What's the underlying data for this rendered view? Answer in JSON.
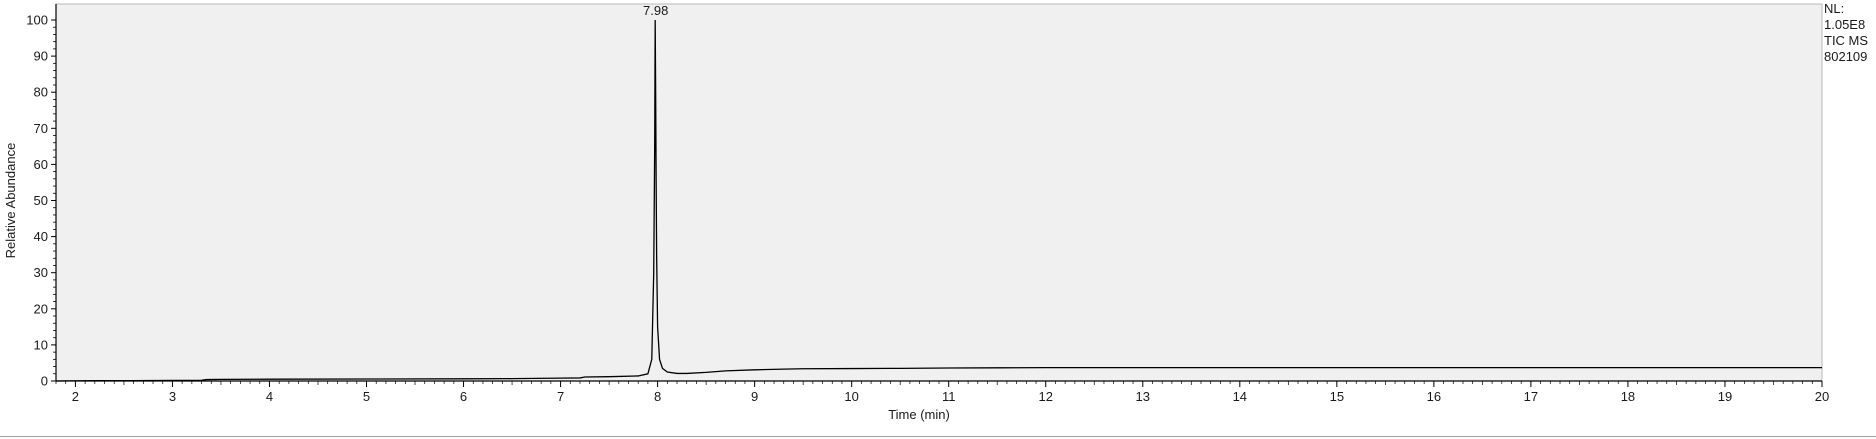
{
  "chart_data": {
    "type": "line",
    "xlabel": "Time (min)",
    "ylabel": "Relative Abundance",
    "xlim": [
      1.8,
      20
    ],
    "ylim": [
      0,
      100
    ],
    "x_ticks": [
      2,
      3,
      4,
      5,
      6,
      7,
      8,
      9,
      10,
      11,
      12,
      13,
      14,
      15,
      16,
      17,
      18,
      19,
      20
    ],
    "y_ticks": [
      0,
      10,
      20,
      30,
      40,
      50,
      60,
      70,
      80,
      90,
      100
    ],
    "grid": false,
    "series": [
      {
        "x": [
          1.8,
          2.2,
          2.6,
          3.0,
          3.3,
          3.35,
          3.5,
          4.0,
          5.0,
          6.0,
          6.5,
          7.0,
          7.2,
          7.25,
          7.5,
          7.8,
          7.9,
          7.94,
          7.96,
          7.97,
          7.975,
          7.98,
          7.985,
          7.99,
          8.0,
          8.02,
          8.05,
          8.1,
          8.2,
          8.3,
          8.5,
          8.7,
          9.0,
          9.3,
          9.5,
          10.0,
          10.5,
          11.0,
          11.5,
          12.0,
          13.0,
          14.0,
          15.0,
          16.0,
          17.0,
          18.0,
          19.0,
          20.0
        ],
        "values": [
          0.0,
          0.1,
          0.1,
          0.15,
          0.2,
          0.4,
          0.45,
          0.5,
          0.55,
          0.6,
          0.65,
          0.8,
          0.85,
          1.1,
          1.2,
          1.4,
          2.0,
          6.0,
          30.0,
          65.0,
          100.0,
          80.0,
          55.0,
          35.0,
          15.0,
          6.0,
          3.5,
          2.5,
          2.1,
          2.1,
          2.4,
          2.8,
          3.1,
          3.3,
          3.4,
          3.45,
          3.5,
          3.6,
          3.65,
          3.7,
          3.7,
          3.7,
          3.7,
          3.7,
          3.7,
          3.7,
          3.7,
          3.7
        ]
      }
    ],
    "peak_annotations": [
      {
        "x": 7.98,
        "y": 100,
        "label": "7.98"
      }
    ],
    "info": [
      "NL:",
      "1.05E8",
      "TIC  MS",
      "802109"
    ],
    "colors": {
      "plot_background": "#f0f0f0",
      "trace": "#000000",
      "axis": "#000000"
    }
  }
}
